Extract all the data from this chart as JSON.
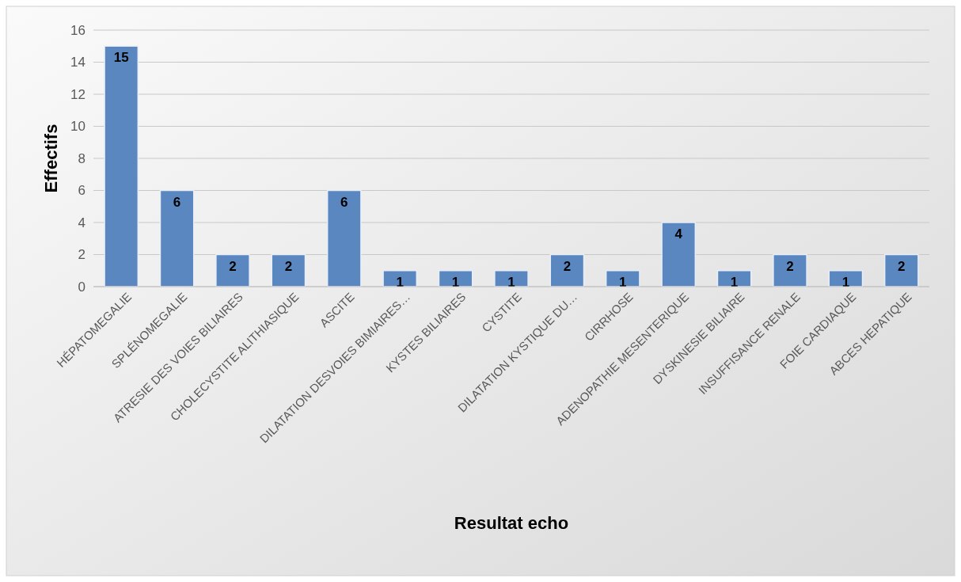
{
  "chart_data": {
    "type": "bar",
    "xlabel": "Resultat echo",
    "ylabel": "Effectifs",
    "categories": [
      "HÉPATOMEGALIE",
      "SPLÉNOMEGALIE",
      "ATRESIE DES VOIES BILIAIRES",
      "CHOLECYSTITE ALITHIASIQUE",
      "ASCITE",
      "DILATATION DESVOIES BIMIAIRES…",
      "KYSTES BILIAIRES",
      "CYSTITE",
      "DILATATION KYSTIQUE DU…",
      "CIRRHOSE",
      "ADENOPATHIE MESENTERIQUE",
      "DYSKINESIE BILIAIRE",
      "INSUFFISANCE RENALE",
      "FOIE CARDIAQUE",
      "ABCES HEPATIQUE"
    ],
    "values": [
      15,
      6,
      2,
      2,
      6,
      1,
      1,
      1,
      2,
      1,
      4,
      1,
      2,
      1,
      2
    ],
    "color": "#5b87c0",
    "ylim": [
      0,
      16
    ],
    "yticks": [
      0,
      2,
      4,
      6,
      8,
      10,
      12,
      14,
      16
    ],
    "grid": "y",
    "data_labels": true
  }
}
